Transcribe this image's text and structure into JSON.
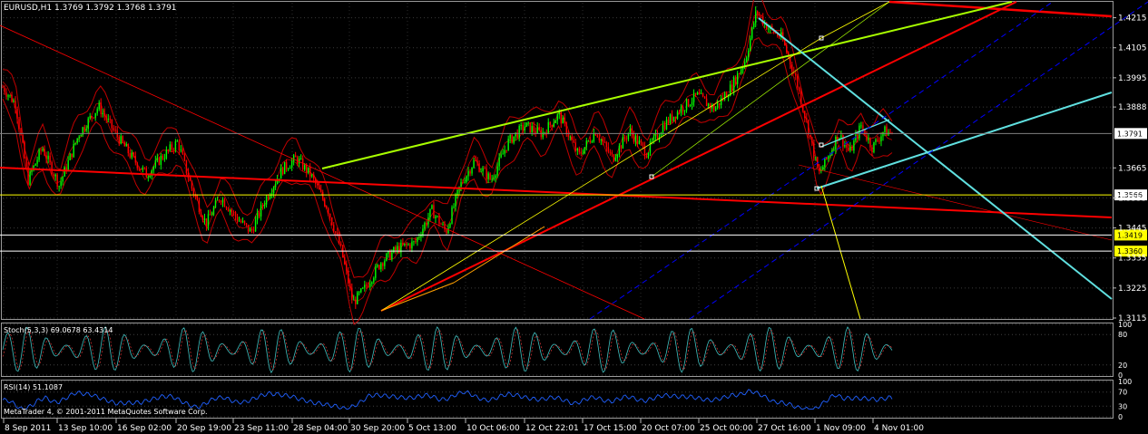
{
  "header": {
    "symbol_line": "EURUSD,H1  1.3769 1.3792 1.3768 1.3791"
  },
  "colors": {
    "background": "#000000",
    "grid": "#707070",
    "candle_up": "#00ff00",
    "candle_down": "#ff0000",
    "bollinger": "#c00000",
    "trend_red": "#ff0000",
    "trend_green": "#a8ff00",
    "trend_cyan": "#60e0e0",
    "channel_blue": "#0000ff",
    "level_yellow": "#ffff00",
    "tag_white": "#ffffff",
    "tag_yellow": "#ffff00",
    "stoch_main": "#40c0c0",
    "rsi": "#2060ff"
  },
  "chart_data": [
    {
      "type": "candlestick",
      "title": "EURUSD,H1  1.3769 1.3792 1.3768 1.3791",
      "ylim": [
        1.3115,
        1.427
      ],
      "y_ticks": [
        "1.4215",
        "1.4105",
        "1.3995",
        "1.3888",
        "1.3665",
        "1.3555",
        "1.3445",
        "1.3335",
        "1.3225",
        "1.3115"
      ],
      "x_ticks": [
        "8 Sep 2011",
        "13 Sep 10:00",
        "16 Sep 02:00",
        "20 Sep 19:00",
        "23 Sep 11:00",
        "28 Sep 04:00",
        "30 Sep 20:00",
        "5 Oct 13:00",
        "10 Oct 06:00",
        "12 Oct 22:01",
        "17 Oct 15:00",
        "20 Oct 07:00",
        "25 Oct 00:00",
        "27 Oct 16:00",
        "1 Nov 09:00",
        "4 Nov 01:00"
      ],
      "price_path": [
        {
          "t": 0,
          "p": 1.396
        },
        {
          "t": 0.45,
          "p": 1.39
        },
        {
          "t": 0.9,
          "p": 1.362
        },
        {
          "t": 1.4,
          "p": 1.374
        },
        {
          "t": 2.0,
          "p": 1.36
        },
        {
          "t": 2.7,
          "p": 1.379
        },
        {
          "t": 3.4,
          "p": 1.389
        },
        {
          "t": 4.0,
          "p": 1.379
        },
        {
          "t": 4.6,
          "p": 1.37
        },
        {
          "t": 5.1,
          "p": 1.364
        },
        {
          "t": 5.6,
          "p": 1.37
        },
        {
          "t": 6.2,
          "p": 1.376
        },
        {
          "t": 6.7,
          "p": 1.359
        },
        {
          "t": 7.2,
          "p": 1.346
        },
        {
          "t": 7.7,
          "p": 1.356
        },
        {
          "t": 8.3,
          "p": 1.348
        },
        {
          "t": 8.8,
          "p": 1.343
        },
        {
          "t": 9.3,
          "p": 1.355
        },
        {
          "t": 9.9,
          "p": 1.366
        },
        {
          "t": 10.4,
          "p": 1.37
        },
        {
          "t": 10.9,
          "p": 1.364
        },
        {
          "t": 11.5,
          "p": 1.352
        },
        {
          "t": 12.0,
          "p": 1.336
        },
        {
          "t": 12.4,
          "p": 1.317
        },
        {
          "t": 12.8,
          "p": 1.322
        },
        {
          "t": 13.4,
          "p": 1.332
        },
        {
          "t": 14.0,
          "p": 1.337
        },
        {
          "t": 14.6,
          "p": 1.339
        },
        {
          "t": 15.2,
          "p": 1.351
        },
        {
          "t": 15.7,
          "p": 1.343
        },
        {
          "t": 16.2,
          "p": 1.36
        },
        {
          "t": 16.7,
          "p": 1.369
        },
        {
          "t": 17.3,
          "p": 1.362
        },
        {
          "t": 17.9,
          "p": 1.376
        },
        {
          "t": 18.5,
          "p": 1.382
        },
        {
          "t": 19.1,
          "p": 1.379
        },
        {
          "t": 19.7,
          "p": 1.386
        },
        {
          "t": 20.4,
          "p": 1.371
        },
        {
          "t": 21.0,
          "p": 1.38
        },
        {
          "t": 21.6,
          "p": 1.37
        },
        {
          "t": 22.2,
          "p": 1.38
        },
        {
          "t": 22.8,
          "p": 1.372
        },
        {
          "t": 23.4,
          "p": 1.382
        },
        {
          "t": 24.0,
          "p": 1.388
        },
        {
          "t": 24.6,
          "p": 1.393
        },
        {
          "t": 25.2,
          "p": 1.388
        },
        {
          "t": 25.8,
          "p": 1.396
        },
        {
          "t": 26.3,
          "p": 1.406
        },
        {
          "t": 26.7,
          "p": 1.424
        },
        {
          "t": 27.1,
          "p": 1.418
        },
        {
          "t": 27.6,
          "p": 1.414
        },
        {
          "t": 28.1,
          "p": 1.399
        },
        {
          "t": 28.5,
          "p": 1.382
        },
        {
          "t": 28.9,
          "p": 1.364
        },
        {
          "t": 29.3,
          "p": 1.372
        },
        {
          "t": 29.6,
          "p": 1.379
        },
        {
          "t": 30.0,
          "p": 1.372
        },
        {
          "t": 30.4,
          "p": 1.382
        },
        {
          "t": 30.8,
          "p": 1.374
        },
        {
          "t": 31.2,
          "p": 1.38
        },
        {
          "t": 31.5,
          "p": 1.3791
        }
      ],
      "horizontal_levels": [
        {
          "price": 1.3566,
          "label": "1.3566",
          "color": "#ffff00",
          "tag_color": "#ffffff"
        },
        {
          "price": 1.3419,
          "label": "1.3419",
          "color": "#ffffff",
          "tag_color": "#ffff00"
        },
        {
          "price": 1.336,
          "label": "1.3360",
          "color": "#ffffff",
          "tag_color": "#ffff00"
        },
        {
          "price": 1.3791,
          "label": "1.3791",
          "color": "#808080",
          "tag_color": "#ffffff"
        }
      ],
      "current_price": "1.3791"
    },
    {
      "type": "line",
      "title": "Stoch(5,3,3) 69.0678 63.4314",
      "ylim": [
        0,
        100
      ],
      "y_ticks": [
        "100",
        "80",
        "20",
        "0"
      ],
      "series": [
        {
          "name": "Stoch(5,3,3)",
          "values": [
            69.0678,
            63.4314
          ]
        }
      ]
    },
    {
      "type": "line",
      "title": "RSI(14) 51.1087",
      "ylim": [
        0,
        100
      ],
      "y_ticks": [
        "100",
        "70",
        "30",
        "0"
      ],
      "series": [
        {
          "name": "RSI(14)",
          "values": [
            51.1087
          ]
        }
      ]
    }
  ],
  "footer": {
    "copyright": "MetaTrader 4, © 2001-2011 MetaQuotes Software Corp."
  }
}
